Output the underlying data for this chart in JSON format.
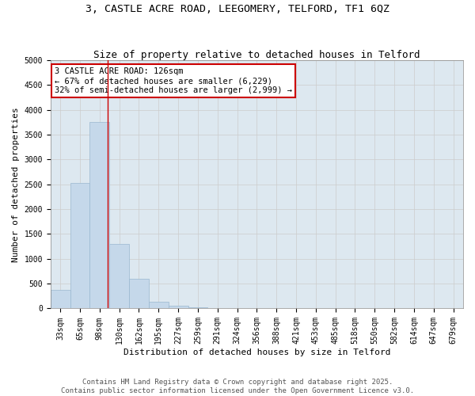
{
  "title_line1": "3, CASTLE ACRE ROAD, LEEGOMERY, TELFORD, TF1 6QZ",
  "title_line2": "Size of property relative to detached houses in Telford",
  "xlabel": "Distribution of detached houses by size in Telford",
  "ylabel": "Number of detached properties",
  "categories": [
    "33sqm",
    "65sqm",
    "98sqm",
    "130sqm",
    "162sqm",
    "195sqm",
    "227sqm",
    "259sqm",
    "291sqm",
    "324sqm",
    "356sqm",
    "388sqm",
    "421sqm",
    "453sqm",
    "485sqm",
    "518sqm",
    "550sqm",
    "582sqm",
    "614sqm",
    "647sqm",
    "679sqm"
  ],
  "values": [
    380,
    2530,
    3760,
    1300,
    600,
    130,
    60,
    30,
    10,
    0,
    0,
    0,
    0,
    0,
    0,
    0,
    0,
    0,
    0,
    0,
    0
  ],
  "bar_color": "#c5d8ea",
  "bar_edge_color": "#9ab8d0",
  "vline_color": "#cc0000",
  "vline_pos": 2.42,
  "annotation_text": "3 CASTLE ACRE ROAD: 126sqm\n← 67% of detached houses are smaller (6,229)\n32% of semi-detached houses are larger (2,999) →",
  "annotation_box_edgecolor": "#cc0000",
  "ylim": [
    0,
    5000
  ],
  "yticks": [
    0,
    500,
    1000,
    1500,
    2000,
    2500,
    3000,
    3500,
    4000,
    4500,
    5000
  ],
  "grid_color": "#cccccc",
  "background_color": "#dde8f0",
  "footer_line1": "Contains HM Land Registry data © Crown copyright and database right 2025.",
  "footer_line2": "Contains public sector information licensed under the Open Government Licence v3.0.",
  "title_fontsize": 9.5,
  "subtitle_fontsize": 9,
  "axis_label_fontsize": 8,
  "tick_fontsize": 7,
  "annotation_fontsize": 7.5,
  "footer_fontsize": 6.5
}
